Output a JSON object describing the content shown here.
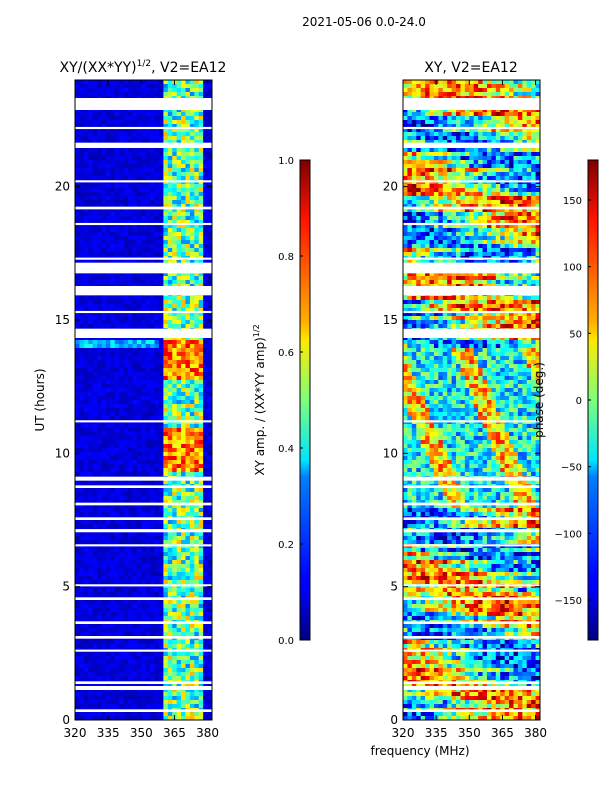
{
  "figure": {
    "suptitle": "2021-05-06 0.0-24.0"
  },
  "chart_data": [
    {
      "type": "heatmap",
      "title": "XY/(XX*YY)1/2, V2=EA12",
      "title_main": "XY/(XX*YY)",
      "title_sup": "1/2",
      "title_rest": ", V2=EA12",
      "xlabel": "",
      "ylabel": "UT (hours)",
      "xlim": [
        320,
        382
      ],
      "ylim": [
        0,
        24
      ],
      "xticks": [
        320,
        335,
        350,
        365,
        380
      ],
      "yticks": [
        0,
        5,
        10,
        15,
        20
      ],
      "colorbar": {
        "label": "XY amp. / (XX*YY amp)1/2",
        "label_main": "XY amp. / (XX*YY amp)",
        "label_sup": "1/2",
        "range": [
          0,
          1
        ],
        "ticks": [
          "0.0",
          "0.2",
          "0.4",
          "0.6",
          "0.8",
          "1.0"
        ],
        "tick_values": [
          0,
          0.2,
          0.4,
          0.6,
          0.8,
          1.0
        ]
      },
      "colormap": "jet"
    },
    {
      "type": "heatmap",
      "title": "XY, V2=EA12",
      "xlabel": "frequency (MHz)",
      "ylabel": "",
      "xlim": [
        320,
        382
      ],
      "ylim": [
        0,
        24
      ],
      "xticks": [
        320,
        335,
        350,
        365,
        380
      ],
      "yticks": [
        0,
        5,
        10,
        15,
        20
      ],
      "colorbar": {
        "label": "phase (deg.)",
        "range": [
          -180,
          180
        ],
        "ticks": [
          "−150",
          "−100",
          "−50",
          "0",
          "50",
          "100",
          "150"
        ],
        "tick_values": [
          -150,
          -100,
          -50,
          0,
          50,
          100,
          150
        ]
      },
      "colormap": "jet"
    }
  ],
  "gaps_ut_hours": [
    0.35,
    1.2,
    1.4,
    2.6,
    3.1,
    3.65,
    4.55,
    5.05,
    6.55,
    7.1,
    7.55,
    8.1,
    8.75,
    9.05,
    11.2,
    14.5,
    15.3,
    16.1,
    16.95,
    17.3,
    18.6,
    19.2,
    20.2,
    21.55,
    22.2,
    23.1
  ],
  "gap_widths_ut_hours": [
    0.1,
    0.15,
    0.1,
    0.08,
    0.1,
    0.1,
    0.1,
    0.08,
    0.08,
    0.12,
    0.1,
    0.1,
    0.1,
    0.15,
    0.08,
    0.35,
    0.08,
    0.35,
    0.4,
    0.08,
    0.08,
    0.1,
    0.08,
    0.2,
    0.08,
    0.45
  ]
}
